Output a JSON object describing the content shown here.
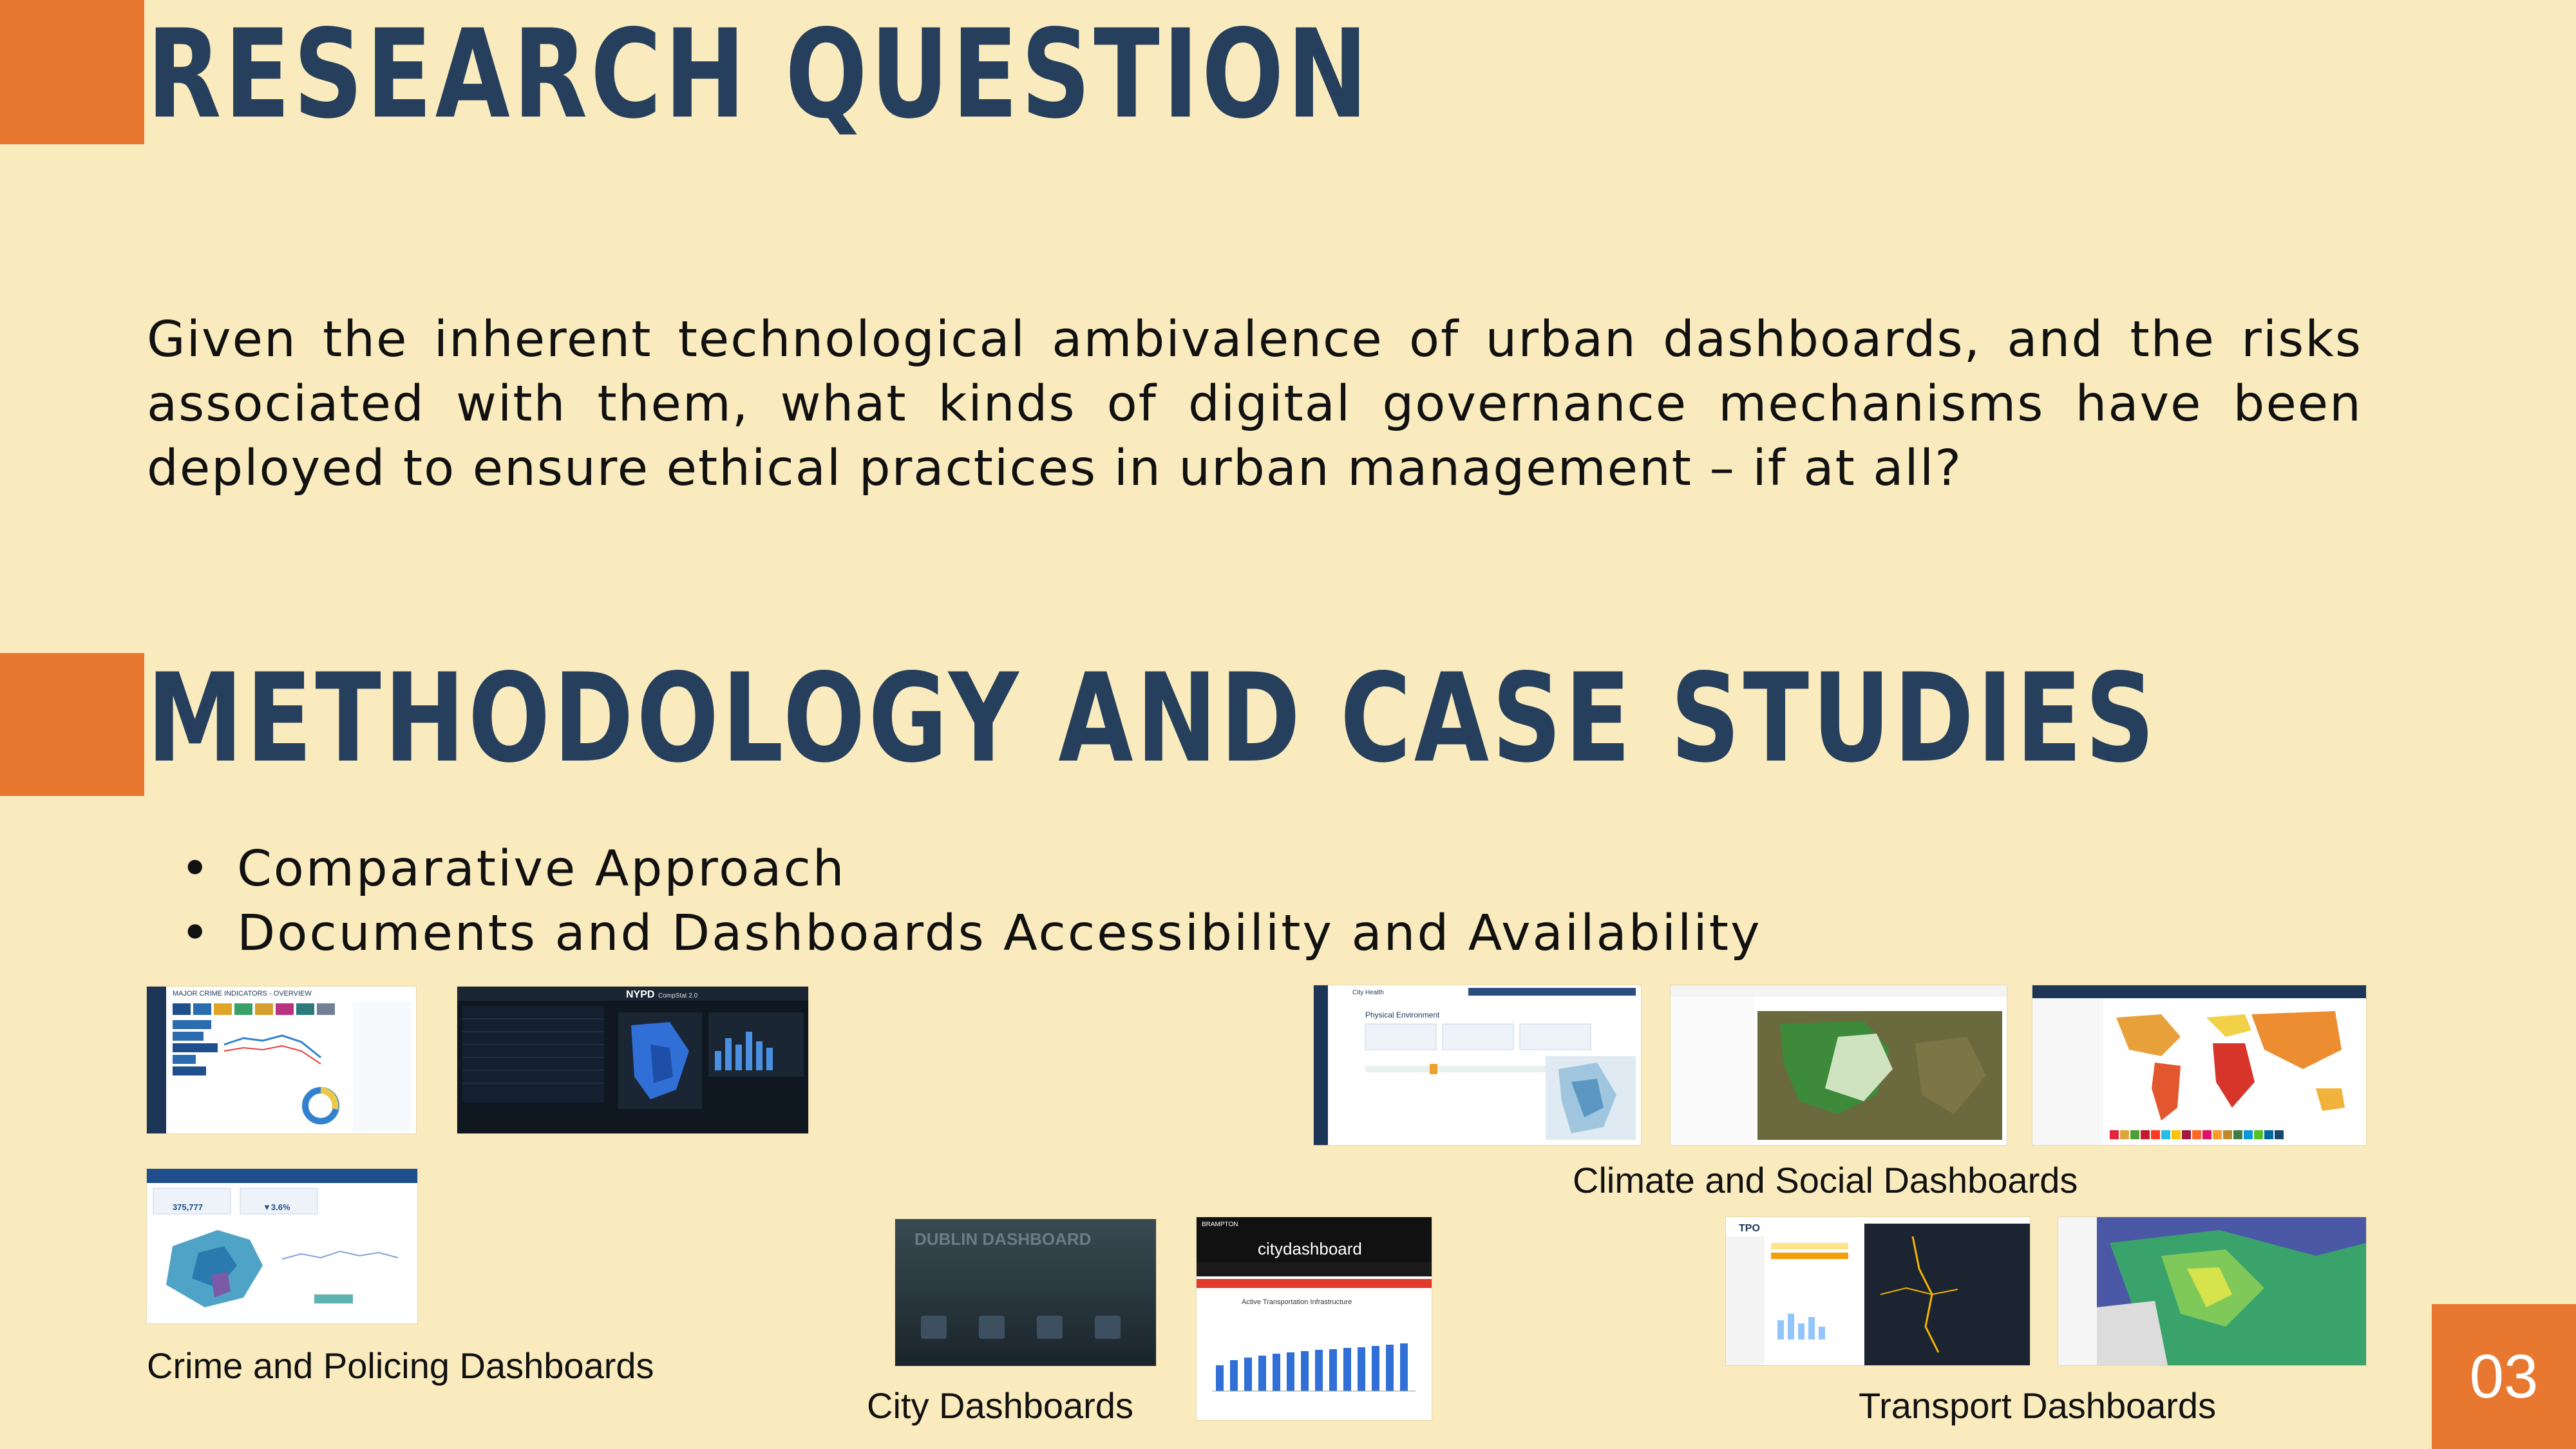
{
  "sections": {
    "research_title": "RESEARCH QUESTION",
    "research_text": "Given the inherent technological ambivalence of urban dashboards, and the risks associated with them, what kinds of digital governance mechanisms have been deployed to ensure ethical practices in urban management – if at all?",
    "methodology_title": "METHODOLOGY AND CASE STUDIES",
    "bullets": [
      "Comparative Approach",
      "Documents and Dashboards Accessibility and Availability"
    ]
  },
  "captions": {
    "crime": "Crime and Policing Dashboards",
    "city": "City Dashboards",
    "climate": "Climate and Social Dashboards",
    "transport": "Transport Dashboards"
  },
  "thumbnails": {
    "crime_overview": "MAJOR CRIME INDICATORS - OVERVIEW",
    "nypd": "NYPD",
    "nypd_sub": "CompStat 2.0",
    "london_stat": "375,777",
    "london_change": "▼3.6%",
    "dublin": "DUBLIN DASHBOARD",
    "citydashboard_header": "BRAMPTON",
    "citydashboard": "citydashboard",
    "citydashboard_chart": "Active Transportation Infrastructure",
    "city_health": "City Health",
    "physical_env": "Physical Environment",
    "tpo": "TPO"
  },
  "page_number": "03",
  "colors": {
    "background": "#f9ebbd",
    "accent": "#e8782f",
    "heading": "#263f5d"
  }
}
